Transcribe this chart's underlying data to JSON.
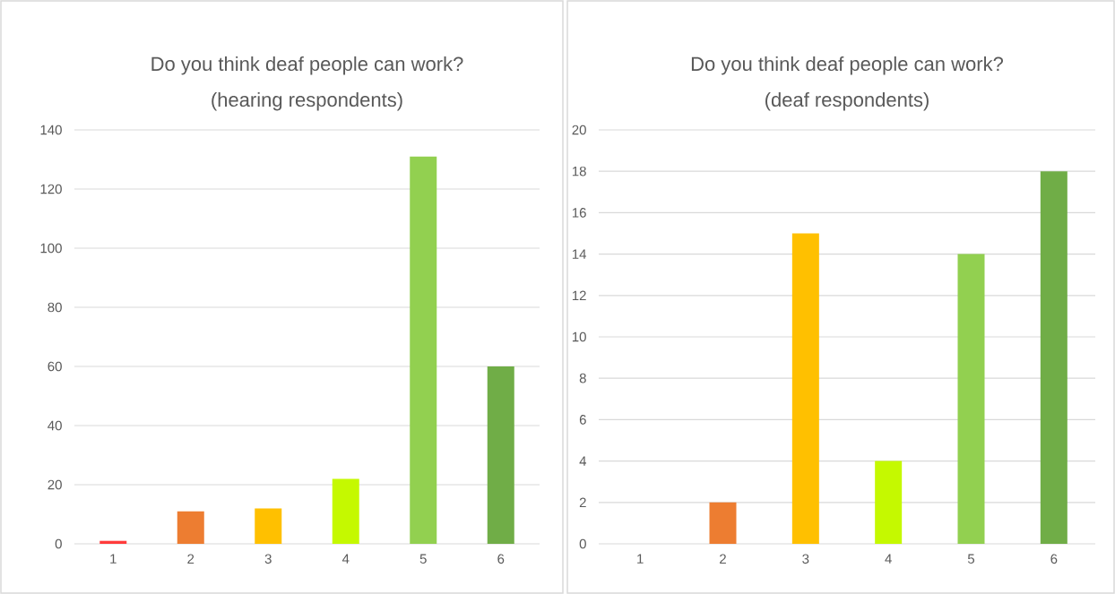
{
  "chart_data": [
    {
      "type": "bar",
      "title": "Do you think deaf people can work?",
      "subtitle": "(hearing respondents)",
      "categories": [
        "1",
        "2",
        "3",
        "4",
        "5",
        "6"
      ],
      "values": [
        1,
        11,
        12,
        22,
        131,
        60
      ],
      "colors": [
        "#ff3b3b",
        "#ed7d31",
        "#ffc000",
        "#c5f900",
        "#92d050",
        "#70ad47"
      ],
      "ylim": [
        0,
        140
      ],
      "yticks": [
        0,
        20,
        40,
        60,
        80,
        100,
        120,
        140
      ],
      "grid": "y"
    },
    {
      "type": "bar",
      "title": "Do you think deaf people can work?",
      "subtitle": "(deaf respondents)",
      "categories": [
        "1",
        "2",
        "3",
        "4",
        "5",
        "6"
      ],
      "values": [
        0,
        2,
        15,
        4,
        14,
        18
      ],
      "colors": [
        "#ff3b3b",
        "#ed7d31",
        "#ffc000",
        "#c5f900",
        "#92d050",
        "#70ad47"
      ],
      "ylim": [
        0,
        20
      ],
      "yticks": [
        0,
        2,
        4,
        6,
        8,
        10,
        12,
        14,
        16,
        18,
        20
      ],
      "grid": "y"
    }
  ]
}
